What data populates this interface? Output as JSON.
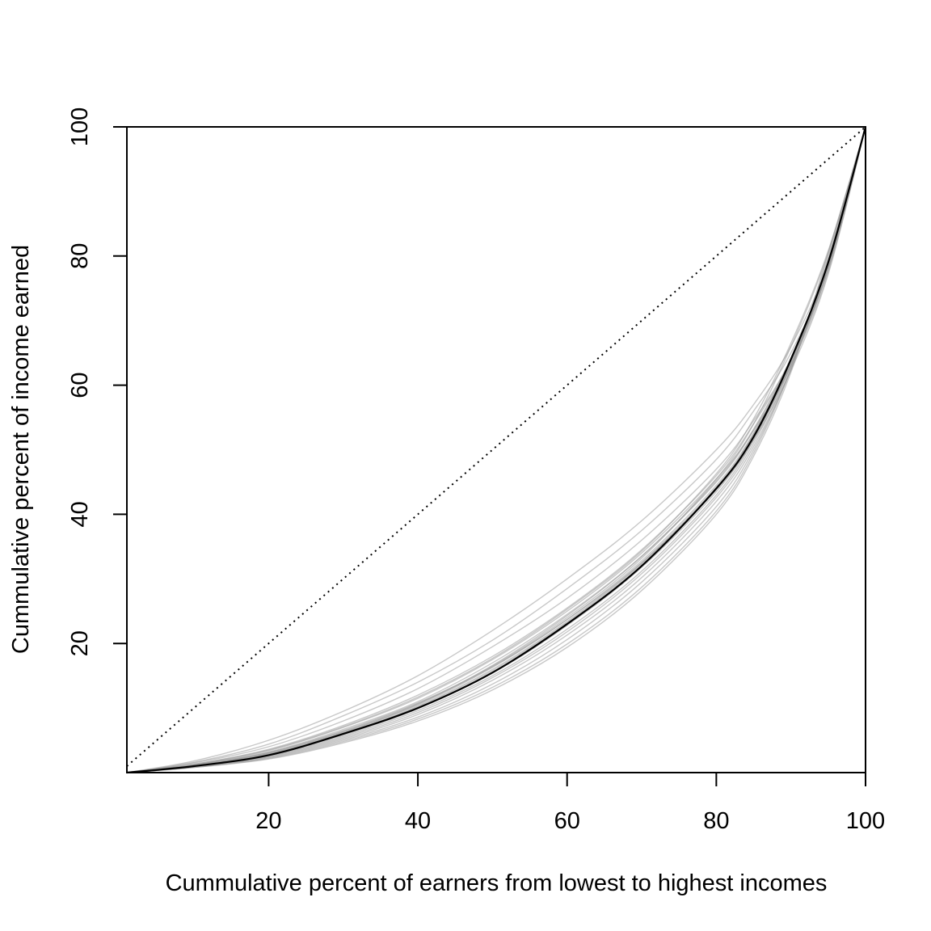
{
  "chart_data": {
    "type": "line",
    "title": "",
    "xlabel": "Cummulative percent of earners from lowest to highest incomes",
    "ylabel": "Cummulative percent of income earned",
    "xlim": [
      1,
      100
    ],
    "ylim": [
      0,
      100
    ],
    "x_ticks": [
      20,
      40,
      60,
      80,
      100
    ],
    "y_ticks": [
      20,
      40,
      60,
      80,
      100
    ],
    "grid": false,
    "legend": "none",
    "equality_line": {
      "x": [
        1,
        100
      ],
      "y": [
        1,
        100
      ],
      "style": "dotted",
      "color": "#000000"
    },
    "mean_curve": {
      "color": "#000000",
      "points": [
        [
          1,
          0
        ],
        [
          10,
          1
        ],
        [
          20,
          2.7
        ],
        [
          30,
          6
        ],
        [
          40,
          10
        ],
        [
          50,
          15.5
        ],
        [
          60,
          23
        ],
        [
          70,
          32
        ],
        [
          80,
          44
        ],
        [
          85,
          52
        ],
        [
          90,
          64
        ],
        [
          95,
          79
        ],
        [
          100,
          100
        ]
      ]
    },
    "simulated_curves": {
      "color": "#9a9a9a",
      "series": [
        [
          [
            1,
            0
          ],
          [
            10,
            1.8
          ],
          [
            20,
            5
          ],
          [
            30,
            9.5
          ],
          [
            40,
            15
          ],
          [
            50,
            22
          ],
          [
            60,
            30
          ],
          [
            70,
            39
          ],
          [
            80,
            50
          ],
          [
            85,
            57
          ],
          [
            90,
            66
          ],
          [
            95,
            79
          ],
          [
            100,
            100
          ]
        ],
        [
          [
            1,
            0
          ],
          [
            10,
            1.6
          ],
          [
            20,
            4.4
          ],
          [
            30,
            8.8
          ],
          [
            40,
            14
          ],
          [
            50,
            20.5
          ],
          [
            60,
            28.5
          ],
          [
            70,
            37.5
          ],
          [
            80,
            48.5
          ],
          [
            85,
            56
          ],
          [
            90,
            65
          ],
          [
            95,
            78.5
          ],
          [
            100,
            100
          ]
        ],
        [
          [
            1,
            0
          ],
          [
            10,
            1.5
          ],
          [
            20,
            4
          ],
          [
            30,
            8
          ],
          [
            40,
            13
          ],
          [
            50,
            19.5
          ],
          [
            60,
            27
          ],
          [
            70,
            36
          ],
          [
            80,
            47
          ],
          [
            85,
            54.5
          ],
          [
            90,
            64
          ],
          [
            95,
            78
          ],
          [
            100,
            100
          ]
        ],
        [
          [
            1,
            0
          ],
          [
            10,
            1.3
          ],
          [
            20,
            3.6
          ],
          [
            30,
            7.3
          ],
          [
            40,
            12
          ],
          [
            50,
            18
          ],
          [
            60,
            25.5
          ],
          [
            70,
            34.5
          ],
          [
            80,
            46
          ],
          [
            85,
            54
          ],
          [
            90,
            64
          ],
          [
            95,
            78
          ],
          [
            100,
            100
          ]
        ],
        [
          [
            1,
            0
          ],
          [
            10,
            1.2
          ],
          [
            20,
            3.2
          ],
          [
            30,
            6.7
          ],
          [
            40,
            11
          ],
          [
            50,
            17
          ],
          [
            60,
            24.5
          ],
          [
            70,
            33.5
          ],
          [
            80,
            45
          ],
          [
            85,
            53
          ],
          [
            90,
            64
          ],
          [
            95,
            78.5
          ],
          [
            100,
            100
          ]
        ],
        [
          [
            1,
            0
          ],
          [
            10,
            1.1
          ],
          [
            20,
            3
          ],
          [
            30,
            6.3
          ],
          [
            40,
            10.5
          ],
          [
            50,
            16.3
          ],
          [
            60,
            23.7
          ],
          [
            70,
            32.8
          ],
          [
            80,
            44.5
          ],
          [
            85,
            52.5
          ],
          [
            90,
            63.5
          ],
          [
            95,
            78.5
          ],
          [
            100,
            100
          ]
        ],
        [
          [
            1,
            0
          ],
          [
            10,
            1
          ],
          [
            20,
            2.8
          ],
          [
            30,
            6
          ],
          [
            40,
            10.2
          ],
          [
            50,
            15.8
          ],
          [
            60,
            23.2
          ],
          [
            70,
            32.3
          ],
          [
            80,
            44
          ],
          [
            85,
            52.5
          ],
          [
            90,
            64
          ],
          [
            95,
            79
          ],
          [
            100,
            100
          ]
        ],
        [
          [
            1,
            0
          ],
          [
            10,
            1
          ],
          [
            20,
            2.6
          ],
          [
            30,
            5.6
          ],
          [
            40,
            9.6
          ],
          [
            50,
            15
          ],
          [
            60,
            22.2
          ],
          [
            70,
            31.2
          ],
          [
            80,
            43
          ],
          [
            85,
            51.5
          ],
          [
            90,
            63.5
          ],
          [
            95,
            79
          ],
          [
            100,
            100
          ]
        ],
        [
          [
            1,
            0
          ],
          [
            10,
            0.9
          ],
          [
            20,
            2.4
          ],
          [
            30,
            5.2
          ],
          [
            40,
            9
          ],
          [
            50,
            14.3
          ],
          [
            60,
            21.3
          ],
          [
            70,
            30.2
          ],
          [
            80,
            42
          ],
          [
            85,
            50.5
          ],
          [
            90,
            62.5
          ],
          [
            95,
            79
          ],
          [
            100,
            100
          ]
        ],
        [
          [
            1,
            0
          ],
          [
            10,
            0.9
          ],
          [
            20,
            2.3
          ],
          [
            30,
            5
          ],
          [
            40,
            8.6
          ],
          [
            50,
            13.7
          ],
          [
            60,
            20.6
          ],
          [
            70,
            29.5
          ],
          [
            80,
            41.2
          ],
          [
            85,
            50
          ],
          [
            90,
            62.5
          ],
          [
            95,
            79.5
          ],
          [
            100,
            100
          ]
        ],
        [
          [
            1,
            0
          ],
          [
            10,
            0.8
          ],
          [
            20,
            2.2
          ],
          [
            30,
            4.8
          ],
          [
            40,
            8.3
          ],
          [
            50,
            13.2
          ],
          [
            60,
            19.9
          ],
          [
            70,
            28.7
          ],
          [
            80,
            40.5
          ],
          [
            85,
            49.5
          ],
          [
            90,
            62.5
          ],
          [
            95,
            80
          ],
          [
            100,
            100
          ]
        ],
        [
          [
            1,
            0
          ],
          [
            10,
            0.8
          ],
          [
            20,
            2.1
          ],
          [
            30,
            4.6
          ],
          [
            40,
            8
          ],
          [
            50,
            12.8
          ],
          [
            60,
            19.4
          ],
          [
            70,
            28.2
          ],
          [
            80,
            40
          ],
          [
            85,
            49
          ],
          [
            90,
            62
          ],
          [
            95,
            80.5
          ],
          [
            100,
            100
          ]
        ],
        [
          [
            1,
            0
          ],
          [
            10,
            1.1
          ],
          [
            20,
            3.1
          ],
          [
            30,
            6.5
          ],
          [
            40,
            10.8
          ],
          [
            50,
            16.5
          ],
          [
            60,
            24
          ],
          [
            70,
            33.2
          ],
          [
            80,
            45.5
          ],
          [
            85,
            54
          ],
          [
            90,
            66
          ],
          [
            95,
            80.5
          ],
          [
            100,
            100
          ]
        ],
        [
          [
            1,
            0
          ],
          [
            10,
            1.2
          ],
          [
            20,
            3.4
          ],
          [
            30,
            7
          ],
          [
            40,
            11.5
          ],
          [
            50,
            17.5
          ],
          [
            60,
            25
          ],
          [
            70,
            34
          ],
          [
            80,
            45.5
          ],
          [
            85,
            53
          ],
          [
            90,
            63
          ],
          [
            95,
            77.5
          ],
          [
            100,
            100
          ]
        ],
        [
          [
            1,
            0
          ],
          [
            10,
            0.95
          ],
          [
            20,
            2.7
          ],
          [
            30,
            5.8
          ],
          [
            40,
            9.9
          ],
          [
            50,
            15.4
          ],
          [
            60,
            22.8
          ],
          [
            70,
            31.8
          ],
          [
            80,
            43.5
          ],
          [
            85,
            51.8
          ],
          [
            90,
            63
          ],
          [
            95,
            78.2
          ],
          [
            100,
            100
          ]
        ],
        [
          [
            1,
            0
          ],
          [
            10,
            1.05
          ],
          [
            20,
            2.9
          ],
          [
            30,
            6.1
          ],
          [
            40,
            10.3
          ],
          [
            50,
            16
          ],
          [
            60,
            23.4
          ],
          [
            70,
            32.5
          ],
          [
            80,
            44.2
          ],
          [
            85,
            52.2
          ],
          [
            90,
            63.2
          ],
          [
            95,
            78
          ],
          [
            100,
            100
          ]
        ],
        [
          [
            1,
            0
          ],
          [
            10,
            1.15
          ],
          [
            20,
            3.1
          ],
          [
            30,
            6.4
          ],
          [
            40,
            10.7
          ],
          [
            50,
            16.4
          ],
          [
            60,
            23.7
          ],
          [
            70,
            32.5
          ],
          [
            80,
            43.8
          ],
          [
            85,
            51.5
          ],
          [
            90,
            62.3
          ],
          [
            95,
            77.2
          ],
          [
            100,
            100
          ]
        ],
        [
          [
            1,
            0
          ],
          [
            10,
            0.85
          ],
          [
            20,
            2.5
          ],
          [
            30,
            5.4
          ],
          [
            40,
            9.3
          ],
          [
            50,
            14.7
          ],
          [
            60,
            21.8
          ],
          [
            70,
            30.8
          ],
          [
            80,
            42.6
          ],
          [
            85,
            51
          ],
          [
            90,
            63
          ],
          [
            95,
            79.3
          ],
          [
            100,
            100
          ]
        ],
        [
          [
            1,
            0
          ],
          [
            10,
            1.3
          ],
          [
            20,
            3.5
          ],
          [
            30,
            7.1
          ],
          [
            40,
            11.7
          ],
          [
            50,
            17.7
          ],
          [
            60,
            25.3
          ],
          [
            70,
            34.3
          ],
          [
            80,
            46.3
          ],
          [
            85,
            54.8
          ],
          [
            90,
            66.5
          ],
          [
            95,
            80.8
          ],
          [
            100,
            100
          ]
        ],
        [
          [
            1,
            0
          ],
          [
            10,
            1
          ],
          [
            20,
            2.9
          ],
          [
            30,
            6.2
          ],
          [
            40,
            10.6
          ],
          [
            50,
            16.6
          ],
          [
            60,
            24.3
          ],
          [
            70,
            33.5
          ],
          [
            80,
            45.2
          ],
          [
            85,
            53.2
          ],
          [
            90,
            64.2
          ],
          [
            95,
            78.8
          ],
          [
            100,
            100
          ]
        ]
      ]
    }
  }
}
